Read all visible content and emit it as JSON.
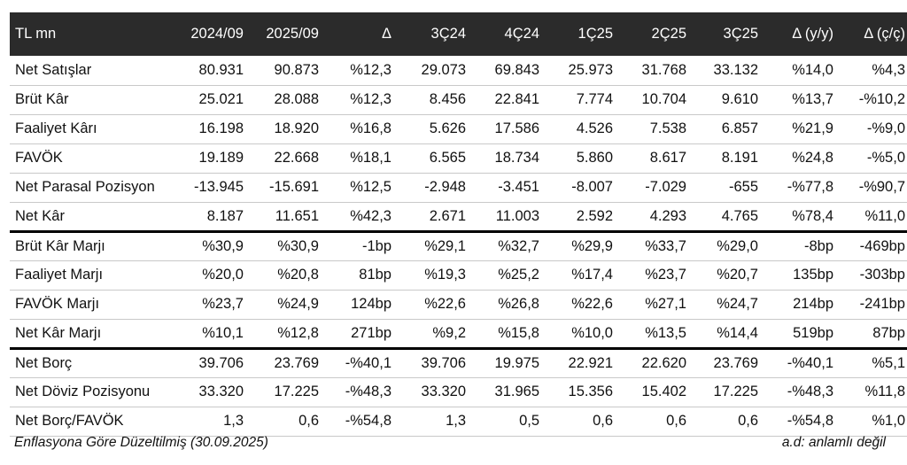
{
  "table": {
    "headers": [
      "TL mn",
      "2024/09",
      "2025/09",
      "Δ",
      "3Ç24",
      "4Ç24",
      "1Ç25",
      "2Ç25",
      "3Ç25",
      "Δ (y/y)",
      "Δ (ç/ç)"
    ],
    "rows": [
      [
        "Net Satışlar",
        "80.931",
        "90.873",
        "%12,3",
        "29.073",
        "69.843",
        "25.973",
        "31.768",
        "33.132",
        "%14,0",
        "%4,3"
      ],
      [
        "Brüt Kâr",
        "25.021",
        "28.088",
        "%12,3",
        "8.456",
        "22.841",
        "7.774",
        "10.704",
        "9.610",
        "%13,7",
        "-%10,2"
      ],
      [
        "Faaliyet Kârı",
        "16.198",
        "18.920",
        "%16,8",
        "5.626",
        "17.586",
        "4.526",
        "7.538",
        "6.857",
        "%21,9",
        "-%9,0"
      ],
      [
        "FAVÖK",
        "19.189",
        "22.668",
        "%18,1",
        "6.565",
        "18.734",
        "5.860",
        "8.617",
        "8.191",
        "%24,8",
        "-%5,0"
      ],
      [
        "Net Parasal Pozisyon",
        "-13.945",
        "-15.691",
        "%12,5",
        "-2.948",
        "-3.451",
        "-8.007",
        "-7.029",
        "-655",
        "-%77,8",
        "-%90,7"
      ],
      [
        "Net Kâr",
        "8.187",
        "11.651",
        "%42,3",
        "2.671",
        "11.003",
        "2.592",
        "4.293",
        "4.765",
        "%78,4",
        "%11,0"
      ],
      [
        "Brüt Kâr Marjı",
        "%30,9",
        "%30,9",
        "-1bp",
        "%29,1",
        "%32,7",
        "%29,9",
        "%33,7",
        "%29,0",
        "-8bp",
        "-469bp"
      ],
      [
        "Faaliyet Marjı",
        "%20,0",
        "%20,8",
        "81bp",
        "%19,3",
        "%25,2",
        "%17,4",
        "%23,7",
        "%20,7",
        "135bp",
        "-303bp"
      ],
      [
        "FAVÖK Marjı",
        "%23,7",
        "%24,9",
        "124bp",
        "%22,6",
        "%26,8",
        "%22,6",
        "%27,1",
        "%24,7",
        "214bp",
        "-241bp"
      ],
      [
        "Net Kâr Marjı",
        "%10,1",
        "%12,8",
        "271bp",
        "%9,2",
        "%15,8",
        "%10,0",
        "%13,5",
        "%14,4",
        "519bp",
        "87bp"
      ],
      [
        "Net Borç",
        "39.706",
        "23.769",
        "-%40,1",
        "39.706",
        "19.975",
        "22.921",
        "22.620",
        "23.769",
        "-%40,1",
        "%5,1"
      ],
      [
        "Net Döviz Pozisyonu",
        "33.320",
        "17.225",
        "-%48,3",
        "33.320",
        "31.965",
        "15.356",
        "15.402",
        "17.225",
        "-%48,3",
        "%11,8"
      ],
      [
        "Net Borç/FAVÖK",
        "1,3",
        "0,6",
        "-%54,8",
        "1,3",
        "0,5",
        "0,6",
        "0,6",
        "0,6",
        "-%54,8",
        "%1,0"
      ]
    ]
  },
  "footer": {
    "note": "Enflasyona Göre Düzeltilmiş (30.09.2025)",
    "legend": "a.d: anlamlı değil"
  }
}
